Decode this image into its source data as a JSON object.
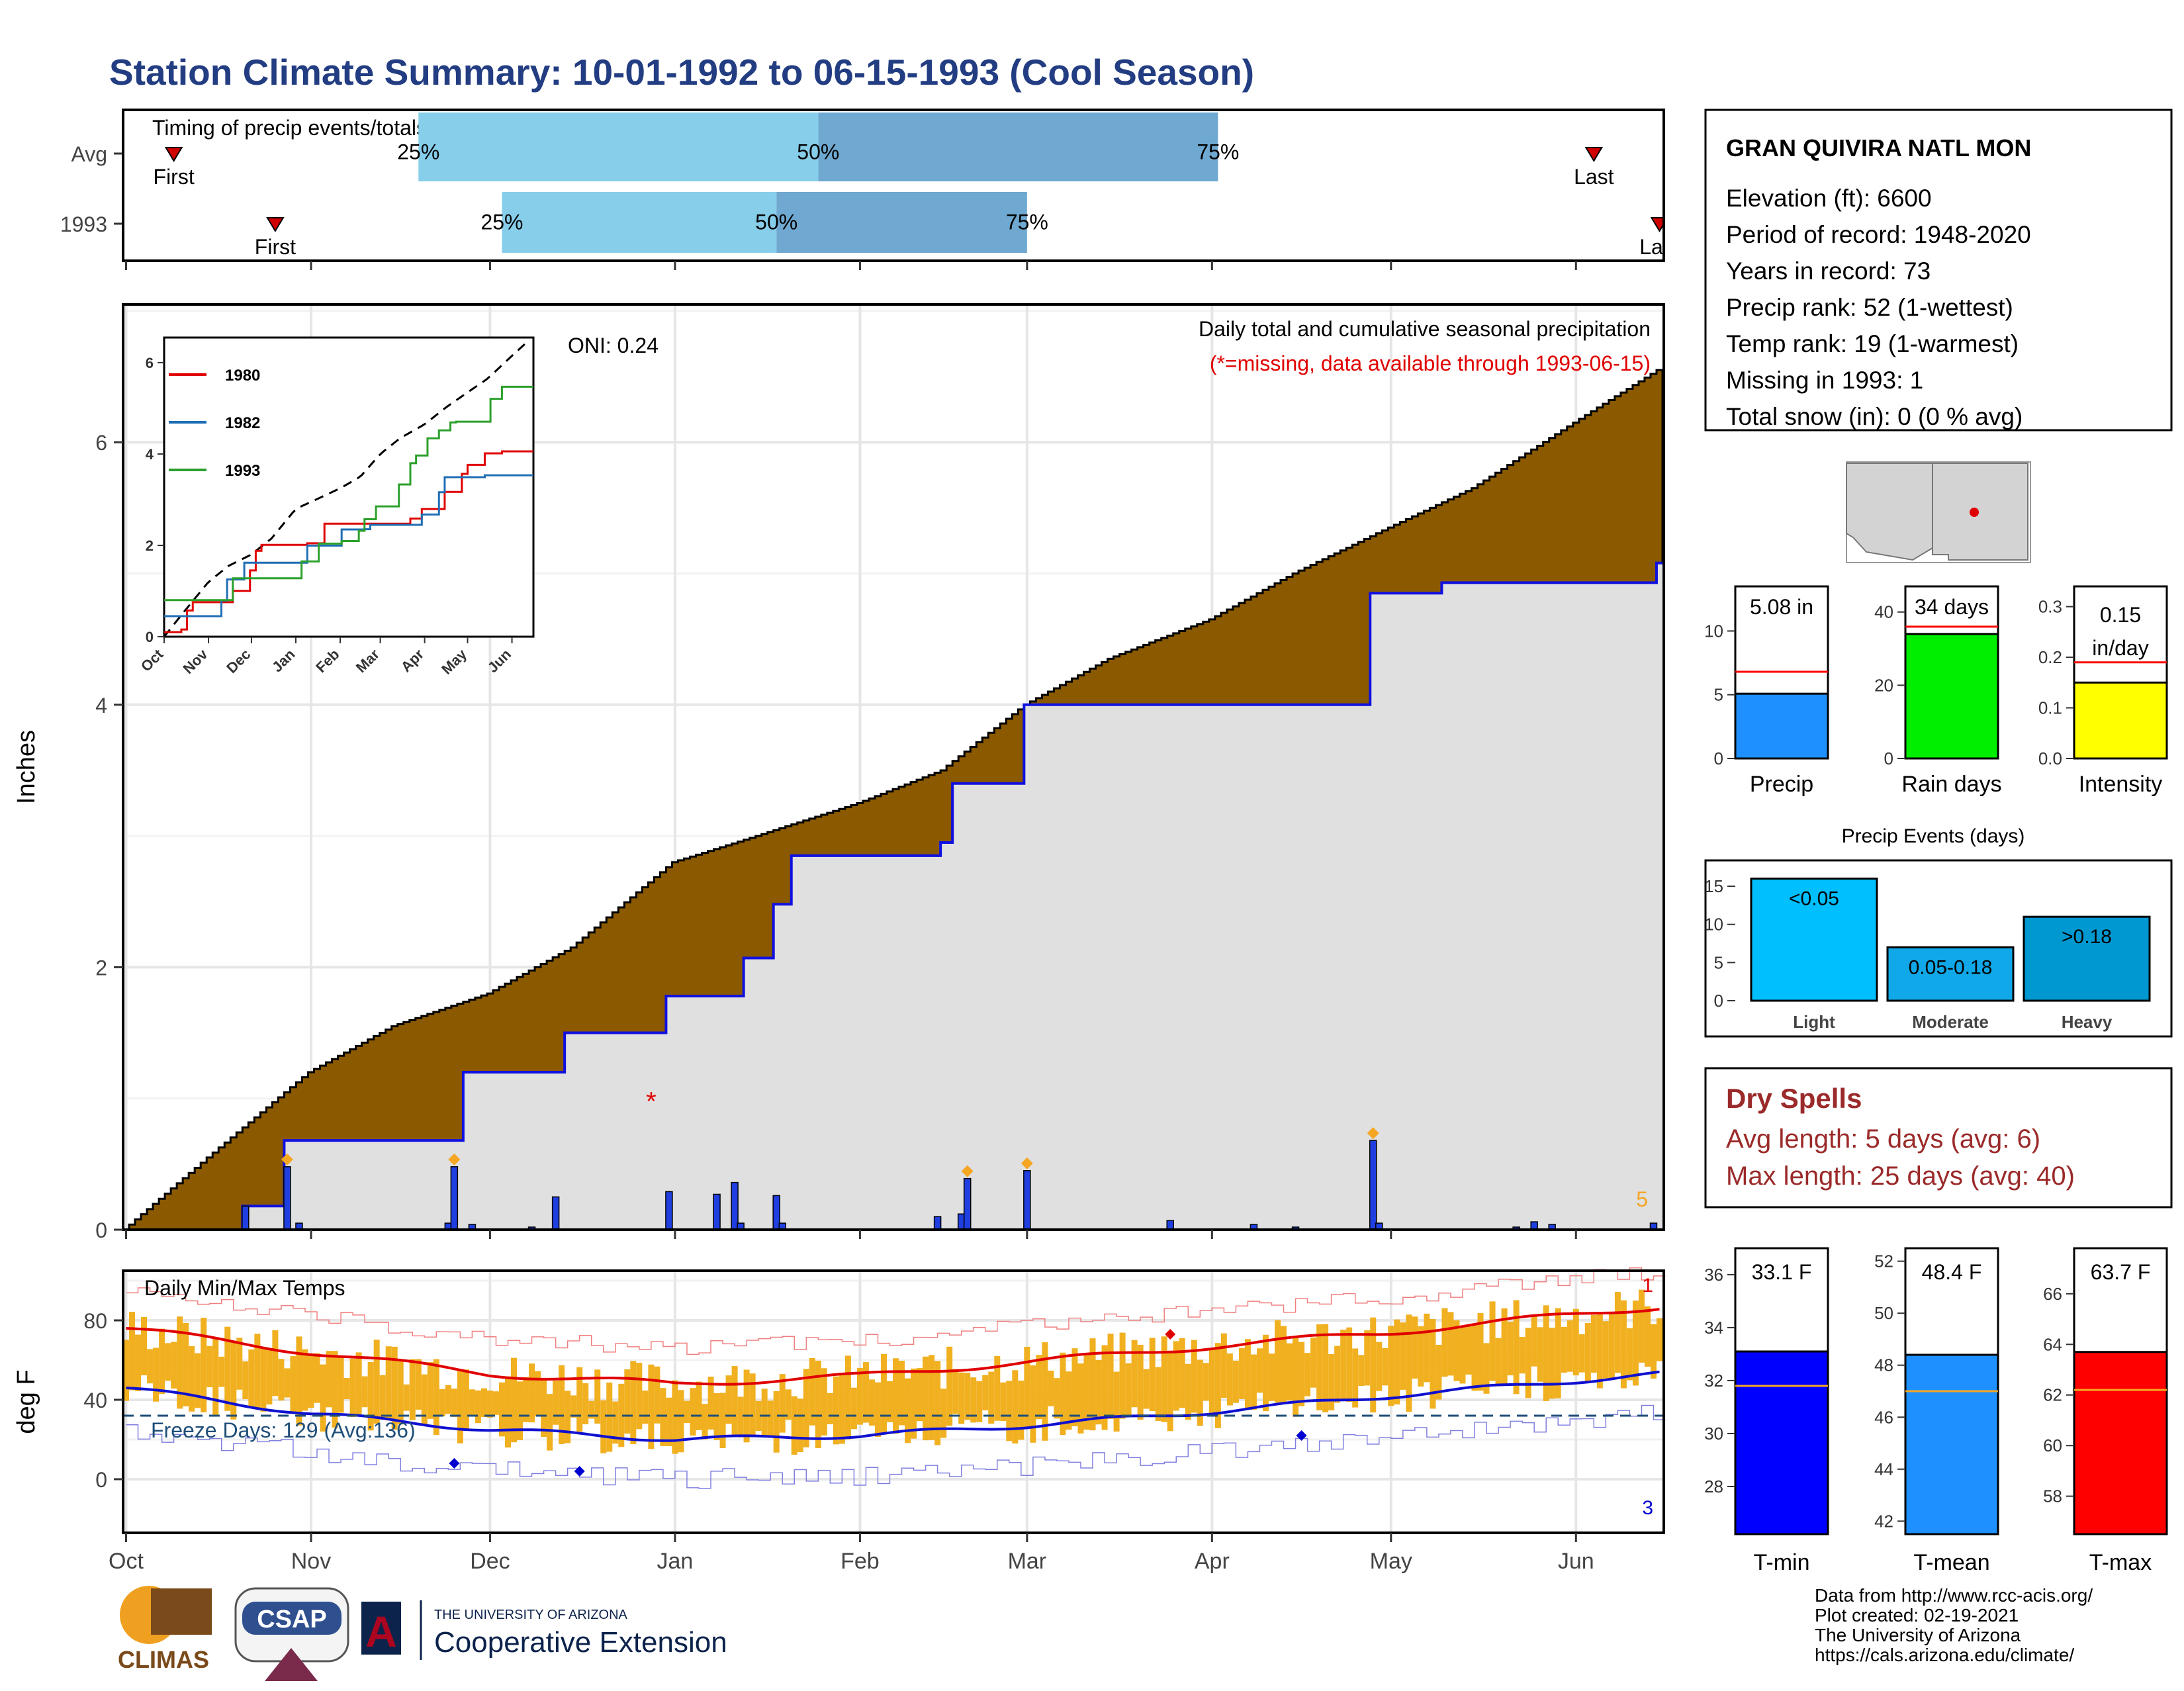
{
  "title": "Station Climate Summary: 10-01-1992 to 06-15-1993 (Cool Season)",
  "colors": {
    "title": "#233d82",
    "precip_fill": "#8b5a00",
    "area_fill": "#e0e0e0",
    "cum_line": "#1010e0",
    "bar": "#1f3fe0",
    "tmax": "#e00000",
    "tmin": "#1010d0",
    "range_bar": "#f0b020",
    "q1": "#87ceeb",
    "q2": "#6fa8d0",
    "dry_text": "#9b2a2a"
  },
  "timing": {
    "title": "Timing of precip events/totals",
    "rows": [
      {
        "label": "Avg",
        "first": "Oct 9",
        "p25": "Nov 19",
        "p50": "Jan 25",
        "p75": "Apr 2",
        "last": "Jun 4",
        "first_label": "First",
        "last_label": "Last"
      },
      {
        "label": "1993",
        "first": "Oct 26",
        "p25": "Dec 3",
        "p50": "Jan 18",
        "p75": "Mar 1",
        "last": "Jun 15",
        "first_label": "First",
        "last_label": "Last"
      }
    ],
    "pct_labels": [
      "25%",
      "50%",
      "75%"
    ]
  },
  "precip": {
    "note1": "Daily total and cumulative seasonal precipitation",
    "note2": "(*=missing, data available through 1993-06-15)",
    "oni": "ONI: 0.24",
    "ylabel": "Inches",
    "yticks": [
      "0",
      "2",
      "4",
      "6"
    ],
    "ylim": [
      0,
      7.05
    ],
    "missing_marker": {
      "symbol": "*",
      "date": "Dec 28",
      "value": 1.0
    },
    "count_label": "5"
  },
  "inset": {
    "xticks": [
      "Oct",
      "Nov",
      "Dec",
      "Jan",
      "Feb",
      "Mar",
      "Apr",
      "May",
      "Jun"
    ],
    "yticks": [
      "0",
      "2",
      "4",
      "6"
    ],
    "legend": [
      {
        "name": "1980",
        "color": "#e00000"
      },
      {
        "name": "1982",
        "color": "#1f6eb4"
      },
      {
        "name": "1993",
        "color": "#2ca02c"
      }
    ]
  },
  "temps": {
    "title": "Daily Min/Max Temps",
    "ylabel": "deg F",
    "yticks": [
      "0",
      "40",
      "80"
    ],
    "ylim": [
      -27,
      105
    ],
    "freeze_label": "Freeze Days: 129 (Avg:136)",
    "freeze_line": 32,
    "top_count": "1",
    "bottom_count": "3"
  },
  "months": [
    "Oct",
    "Nov",
    "Dec",
    "Jan",
    "Feb",
    "Mar",
    "Apr",
    "May",
    "Jun"
  ],
  "station": {
    "name": "GRAN QUIVIRA NATL MON",
    "lines": [
      "Elevation (ft): 6600",
      "Period of record: 1948-2020",
      "Years in record: 73",
      "Precip rank: 52 (1-wettest)",
      "Temp rank: 19 (1-warmest)",
      "Missing in 1993: 1",
      "Total snow (in): 0 (0 % avg)"
    ]
  },
  "mini_bars": [
    {
      "label": "Precip",
      "value": 5.08,
      "avg": 6.8,
      "max": 13.5,
      "text": "5.08 in",
      "yticks": [
        "0",
        "5",
        "10"
      ],
      "color": "#1e90ff"
    },
    {
      "label": "Rain days",
      "value": 34,
      "avg": 36,
      "max": 47,
      "text": "34 days",
      "yticks": [
        "0",
        "20",
        "40"
      ],
      "color": "#00ee00"
    },
    {
      "label": "Intensity",
      "value": 0.15,
      "avg": 0.19,
      "max": 0.34,
      "text": "0.15 in/day",
      "text_lines": [
        "0.15",
        "in/day"
      ],
      "yticks": [
        "0.0",
        "0.1",
        "0.2",
        "0.3"
      ],
      "color": "#ffff00"
    }
  ],
  "events": {
    "title": "Precip Events (days)",
    "bars": [
      {
        "label": "Light",
        "value": 16,
        "text": "<0.05",
        "color": "#00bfff"
      },
      {
        "label": "Moderate",
        "value": 7,
        "text": "0.05-0.18",
        "color": "#10a8e8"
      },
      {
        "label": "Heavy",
        "value": 11,
        "text": ">0.18",
        "color": "#0098d0"
      }
    ],
    "yticks": [
      "0",
      "5",
      "10",
      "15"
    ]
  },
  "dry": {
    "title": "Dry Spells",
    "lines": [
      "Avg length: 5 days (avg: 6)",
      "Max length: 25 days (avg: 40)"
    ]
  },
  "temp_bars": [
    {
      "label": "T-min",
      "value": 33.1,
      "avg": 31.8,
      "text": "33.1 F",
      "yticks": [
        "28",
        "30",
        "32",
        "34",
        "36"
      ],
      "color": "#0000ff"
    },
    {
      "label": "T-mean",
      "value": 48.4,
      "avg": 47.0,
      "text": "48.4 F",
      "yticks": [
        "42",
        "44",
        "46",
        "48",
        "50",
        "52"
      ],
      "color": "#1e90ff"
    },
    {
      "label": "T-max",
      "value": 63.7,
      "avg": 62.2,
      "text": "63.7 F",
      "yticks": [
        "58",
        "60",
        "62",
        "64",
        "66"
      ],
      "color": "#ff0000"
    }
  ],
  "footer": {
    "lines": [
      "Data from http://www.rcc-acis.org/",
      "Plot created: 02-19-2021",
      "The University of Arizona",
      "https://cals.arizona.edu/climate/"
    ],
    "logo_climas": "CLIMAS",
    "logo_csap": "CSAP",
    "logo_ua_small": "THE UNIVERSITY OF ARIZONA",
    "logo_ua_big": "Cooperative Extension"
  },
  "chart_data": {
    "type": "area",
    "title": "Station Climate Summary: 10-01-1992 to 06-15-1993 (Cool Season)",
    "xlabel": "",
    "ylabel": "Inches",
    "x_range": [
      "1992-10-01",
      "1993-06-15"
    ],
    "ylim": [
      0,
      7.05
    ],
    "series": [
      {
        "name": "avg_cumulative",
        "points": [
          [
            "1992-10-01",
            0
          ],
          [
            "1992-10-15",
            0.55
          ],
          [
            "1992-11-01",
            1.2
          ],
          [
            "1992-11-15",
            1.55
          ],
          [
            "1992-12-01",
            1.8
          ],
          [
            "1992-12-15",
            2.15
          ],
          [
            "1993-01-01",
            2.8
          ],
          [
            "1993-01-15",
            3.0
          ],
          [
            "1993-02-01",
            3.25
          ],
          [
            "1993-02-15",
            3.5
          ],
          [
            "1993-03-01",
            4.0
          ],
          [
            "1993-03-15",
            4.35
          ],
          [
            "1993-04-01",
            4.65
          ],
          [
            "1993-04-15",
            5.0
          ],
          [
            "1993-05-01",
            5.35
          ],
          [
            "1993-05-15",
            5.65
          ],
          [
            "1993-06-01",
            6.15
          ],
          [
            "1993-06-15",
            6.55
          ]
        ]
      },
      {
        "name": "1993_cumulative",
        "points": [
          [
            "1992-10-01",
            0
          ],
          [
            "1992-10-21",
            0.18
          ],
          [
            "1992-10-28",
            0.68
          ],
          [
            "1992-11-27",
            1.2
          ],
          [
            "1992-12-14",
            1.5
          ],
          [
            "1992-12-31",
            1.78
          ],
          [
            "1993-01-13",
            2.07
          ],
          [
            "1993-01-18",
            2.48
          ],
          [
            "1993-01-21",
            2.85
          ],
          [
            "1993-02-15",
            2.95
          ],
          [
            "1993-02-17",
            3.4
          ],
          [
            "1993-03-01",
            4.0
          ],
          [
            "1993-04-28",
            4.85
          ],
          [
            "1993-05-10",
            4.93
          ],
          [
            "1993-06-15",
            5.08
          ]
        ]
      }
    ],
    "daily_precip": [
      [
        "1992-10-21",
        0.18
      ],
      [
        "1992-10-28",
        0.48
      ],
      [
        "1992-10-30",
        0.05
      ],
      [
        "1992-11-24",
        0.05
      ],
      [
        "1992-11-25",
        0.48
      ],
      [
        "1992-11-28",
        0.04
      ],
      [
        "1992-12-08",
        0.02
      ],
      [
        "1992-12-12",
        0.25
      ],
      [
        "1992-12-31",
        0.29
      ],
      [
        "1993-01-08",
        0.27
      ],
      [
        "1993-01-11",
        0.36
      ],
      [
        "1993-01-12",
        0.05
      ],
      [
        "1993-01-18",
        0.26
      ],
      [
        "1993-01-19",
        0.05
      ],
      [
        "1993-02-14",
        0.1
      ],
      [
        "1993-02-18",
        0.12
      ],
      [
        "1993-02-19",
        0.39
      ],
      [
        "1993-03-01",
        0.45
      ],
      [
        "1993-03-25",
        0.07
      ],
      [
        "1993-04-08",
        0.04
      ],
      [
        "1993-04-15",
        0.02
      ],
      [
        "1993-04-28",
        0.68
      ],
      [
        "1993-04-29",
        0.05
      ],
      [
        "1993-05-22",
        0.02
      ],
      [
        "1993-05-25",
        0.06
      ],
      [
        "1993-05-28",
        0.04
      ],
      [
        "1993-06-14",
        0.05
      ]
    ],
    "temperatures": {
      "avg_max": [
        [
          "1992-10-01",
          76
        ],
        [
          "1992-11-01",
          64
        ],
        [
          "1992-12-01",
          53
        ],
        [
          "1993-01-01",
          48
        ],
        [
          "1993-02-01",
          52
        ],
        [
          "1993-03-01",
          59
        ],
        [
          "1993-04-01",
          67
        ],
        [
          "1993-05-01",
          74
        ],
        [
          "1993-06-15",
          87
        ]
      ],
      "avg_min": [
        [
          "1992-10-01",
          46
        ],
        [
          "1992-11-01",
          33
        ],
        [
          "1992-12-01",
          25
        ],
        [
          "1993-01-01",
          20
        ],
        [
          "1993-02-01",
          22
        ],
        [
          "1993-03-01",
          27
        ],
        [
          "1993-04-01",
          34
        ],
        [
          "1993-05-01",
          42
        ],
        [
          "1993-06-15",
          53
        ]
      ],
      "record_low_markers": [
        [
          "1992-11-25",
          8
        ],
        [
          "1992-12-16",
          4
        ],
        [
          "1993-04-16",
          22
        ]
      ],
      "record_high_markers": [
        [
          "1993-03-25",
          73
        ]
      ]
    },
    "inset_years": [
      "1980",
      "1982",
      "1993"
    ]
  }
}
